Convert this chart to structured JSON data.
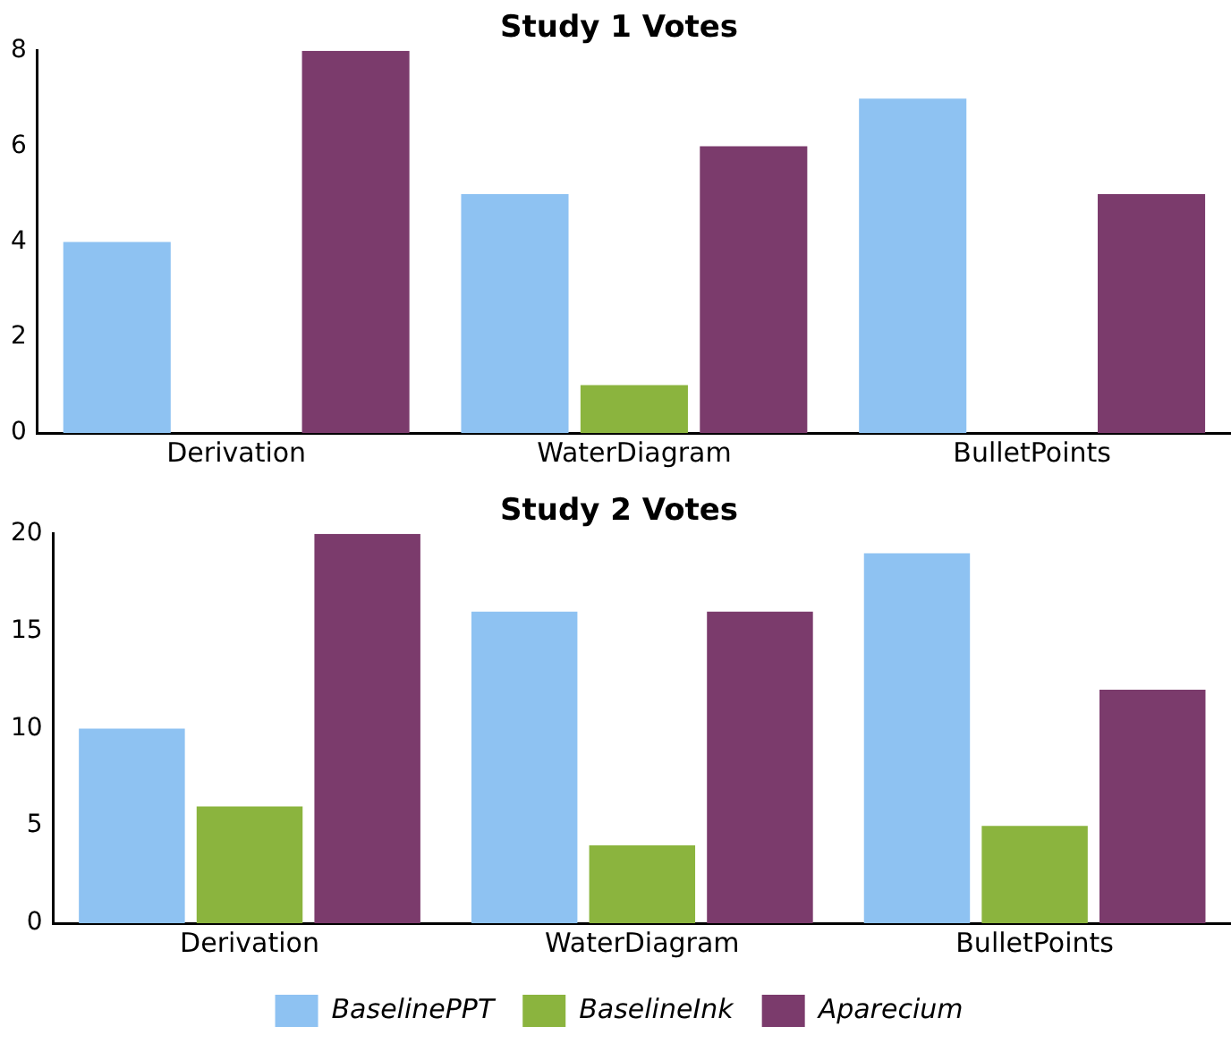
{
  "chart_data": [
    {
      "type": "bar",
      "title": "Study 1 Votes",
      "categories": [
        "Derivation",
        "WaterDiagram",
        "BulletPoints"
      ],
      "series": [
        {
          "color": "#8ec2f2",
          "values": [
            4,
            5,
            7
          ]
        },
        {
          "color": "#8bb43e",
          "values": [
            0,
            1,
            0
          ]
        },
        {
          "color": "#7b3b6c",
          "values": [
            8,
            6,
            5
          ]
        }
      ],
      "ylim": [
        0,
        8
      ],
      "yticks": [
        0,
        2,
        4,
        6,
        8
      ],
      "grid": false,
      "legend": false
    },
    {
      "type": "bar",
      "title": "Study 2 Votes",
      "categories": [
        "Derivation",
        "WaterDiagram",
        "BulletPoints"
      ],
      "series": [
        {
          "name": "BaselinePPT",
          "color": "#8ec2f2",
          "values": [
            10,
            16,
            19
          ]
        },
        {
          "name": "BaselineInk",
          "color": "#8bb43e",
          "values": [
            6,
            4,
            5
          ]
        },
        {
          "name": "Aparecium",
          "color": "#7b3b6c",
          "values": [
            20,
            16,
            12
          ]
        }
      ],
      "ylim": [
        0,
        20
      ],
      "yticks": [
        0,
        5,
        10,
        15,
        20
      ],
      "grid": false,
      "legend": "bottom"
    }
  ]
}
